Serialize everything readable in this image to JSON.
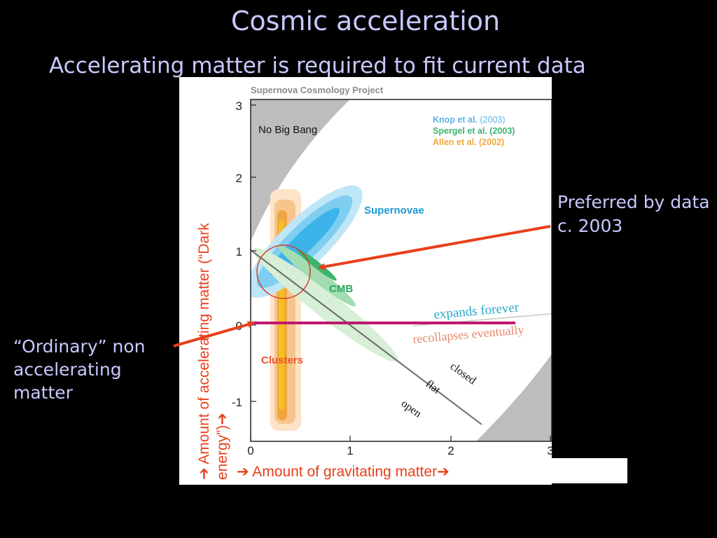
{
  "slide": {
    "title": "Cosmic acceleration",
    "subtitle": "Accelerating matter is required to fit current data"
  },
  "figure": {
    "project": "Supernova Cosmology Project",
    "no_big_bang": "No Big Bang",
    "legend": [
      {
        "author": "Knop et al.",
        "year": "(2003)",
        "color": "#5ab4e6"
      },
      {
        "author": "Spergel et al.",
        "year": "(2003)",
        "color": "#3cb46e"
      },
      {
        "author": "Allen et al.",
        "year": "(2002)",
        "color": "#f0a640"
      }
    ],
    "region_labels": {
      "supernovae": "Supernovae",
      "cmb": "CMB",
      "clusters": "Clusters"
    },
    "line_labels": {
      "expands": "expands forever",
      "recollapses": "recollapses eventually",
      "closed": "closed",
      "flat": "flat",
      "open": "open"
    },
    "x_ticks": [
      "0",
      "1",
      "2",
      "3"
    ],
    "y_ticks": [
      "3",
      "2",
      "1",
      "0",
      "-1"
    ],
    "x_axis_label": "➔ Amount of gravitating matter➔",
    "y_axis_label_line1": "➔ Amount of accelerating  matter (“Dark",
    "y_axis_label_line2": "energy”)➔"
  },
  "annotations": {
    "preferred": "Preferred by data c. 2003",
    "ordinary": "“Ordinary” non accelerating matter"
  },
  "colors": {
    "slide_text": "#c8c8ff",
    "annotation_arrow": "#e8401c",
    "highlight_line": "#c0186e",
    "supernova_blue": "#4ab8ec",
    "cmb_green": "#3cb46e",
    "clusters_orange": "#f0a640",
    "expands_text": "#2aa8c8",
    "recollapse_text": "#e88870"
  }
}
